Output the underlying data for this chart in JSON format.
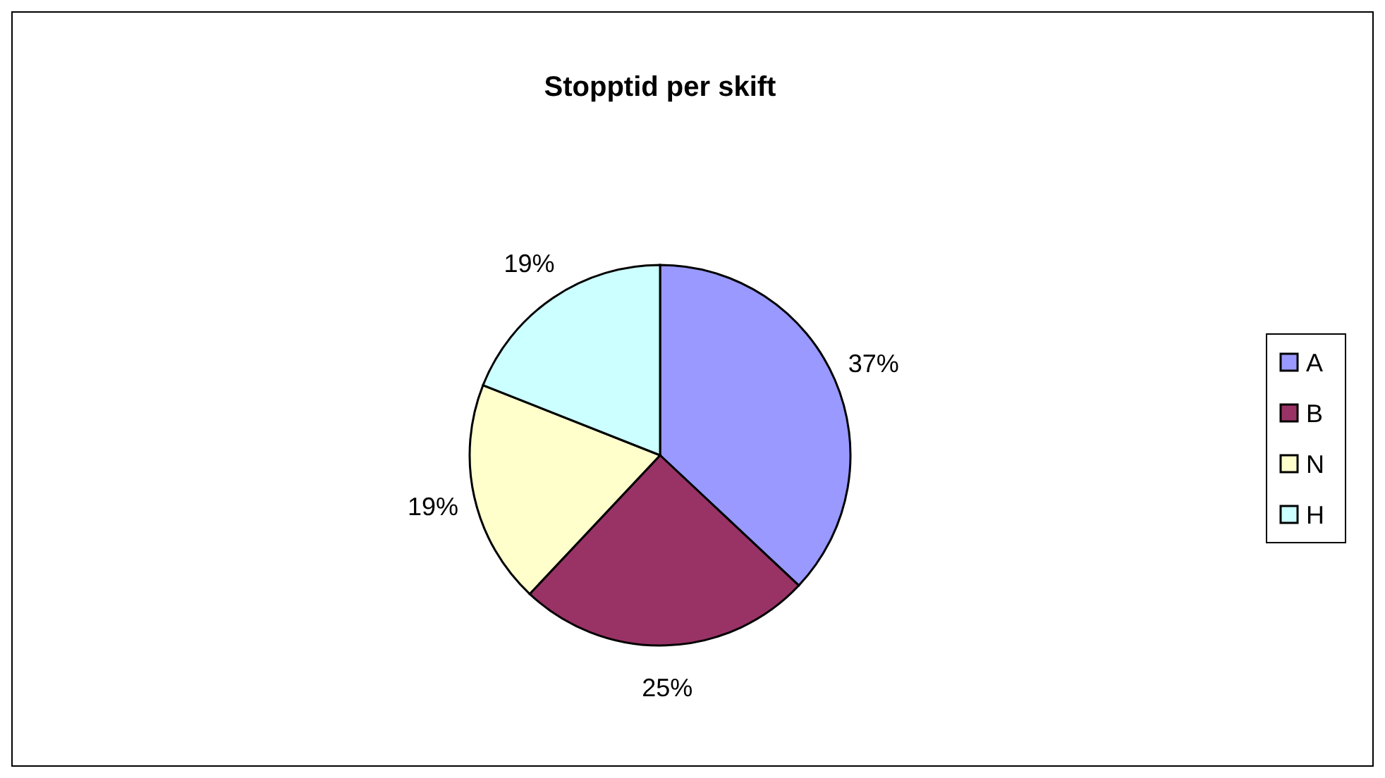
{
  "chart_data": {
    "type": "pie",
    "title": "Stopptid per skift",
    "categories": [
      "A",
      "B",
      "N",
      "H"
    ],
    "values": [
      37,
      25,
      19,
      19
    ],
    "colors": [
      "#9999ff",
      "#993366",
      "#ffffcc",
      "#ccffff"
    ],
    "value_labels": [
      "37%",
      "25%",
      "19%",
      "19%"
    ],
    "legend": "right"
  }
}
